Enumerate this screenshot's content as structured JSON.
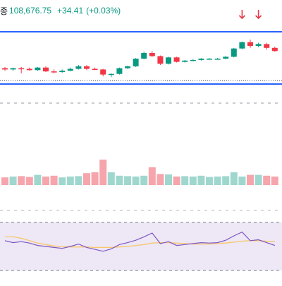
{
  "header": {
    "label": "종",
    "price": "108,676.75",
    "change": "+34.41",
    "change_pct": "(+0.03%)"
  },
  "colors": {
    "up": "#089981",
    "down": "#f23645",
    "up_volume": "#9fd7cf",
    "down_volume": "#f5a5ab",
    "channel": "#2962ff",
    "rsi_line": "#7e57c2",
    "rsi_ma": "#f7c76a",
    "rsi_band": "#ede7f6",
    "arrow": "#e53945"
  },
  "price_panel": {
    "icons": [
      "down-arrow-icon",
      "down-arrow-icon"
    ]
  },
  "chart_data": {
    "type": "candlestick",
    "price_scale": {
      "min": 0,
      "max": 100
    },
    "candles": [
      {
        "o": 26,
        "h": 28,
        "l": 22,
        "c": 24
      },
      {
        "o": 24,
        "h": 27,
        "l": 22,
        "c": 26
      },
      {
        "o": 26,
        "h": 28,
        "l": 18,
        "c": 25
      },
      {
        "o": 25,
        "h": 27,
        "l": 22,
        "c": 23
      },
      {
        "o": 23,
        "h": 28,
        "l": 22,
        "c": 27
      },
      {
        "o": 27,
        "h": 29,
        "l": 20,
        "c": 21
      },
      {
        "o": 21,
        "h": 24,
        "l": 18,
        "c": 20
      },
      {
        "o": 20,
        "h": 24,
        "l": 19,
        "c": 22
      },
      {
        "o": 22,
        "h": 27,
        "l": 21,
        "c": 25
      },
      {
        "o": 25,
        "h": 31,
        "l": 24,
        "c": 29
      },
      {
        "o": 29,
        "h": 31,
        "l": 23,
        "c": 25
      },
      {
        "o": 25,
        "h": 27,
        "l": 23,
        "c": 24
      },
      {
        "o": 24,
        "h": 25,
        "l": 13,
        "c": 16
      },
      {
        "o": 16,
        "h": 18,
        "l": 12,
        "c": 17
      },
      {
        "o": 17,
        "h": 27,
        "l": 16,
        "c": 26
      },
      {
        "o": 26,
        "h": 30,
        "l": 25,
        "c": 29
      },
      {
        "o": 29,
        "h": 42,
        "l": 28,
        "c": 41
      },
      {
        "o": 41,
        "h": 52,
        "l": 40,
        "c": 50
      },
      {
        "o": 50,
        "h": 53,
        "l": 44,
        "c": 45
      },
      {
        "o": 45,
        "h": 46,
        "l": 31,
        "c": 33
      },
      {
        "o": 33,
        "h": 44,
        "l": 32,
        "c": 43
      },
      {
        "o": 43,
        "h": 44,
        "l": 35,
        "c": 36
      },
      {
        "o": 36,
        "h": 39,
        "l": 35,
        "c": 38
      },
      {
        "o": 38,
        "h": 40,
        "l": 37,
        "c": 39
      },
      {
        "o": 39,
        "h": 42,
        "l": 38,
        "c": 41
      },
      {
        "o": 41,
        "h": 42,
        "l": 40,
        "c": 41
      },
      {
        "o": 41,
        "h": 42,
        "l": 40,
        "c": 41
      },
      {
        "o": 41,
        "h": 45,
        "l": 40,
        "c": 44
      },
      {
        "o": 44,
        "h": 58,
        "l": 43,
        "c": 57
      },
      {
        "o": 57,
        "h": 68,
        "l": 56,
        "c": 67
      },
      {
        "o": 67,
        "h": 71,
        "l": 58,
        "c": 61
      },
      {
        "o": 61,
        "h": 66,
        "l": 59,
        "c": 64
      },
      {
        "o": 64,
        "h": 66,
        "l": 55,
        "c": 58
      },
      {
        "o": 58,
        "h": 60,
        "l": 52,
        "c": 53
      }
    ],
    "volume": [
      0.18,
      0.2,
      0.21,
      0.19,
      0.24,
      0.2,
      0.22,
      0.18,
      0.2,
      0.21,
      0.28,
      0.3,
      0.6,
      0.3,
      0.22,
      0.21,
      0.2,
      0.22,
      0.42,
      0.26,
      0.25,
      0.2,
      0.21,
      0.2,
      0.22,
      0.19,
      0.2,
      0.21,
      0.3,
      0.2,
      0.24,
      0.24,
      0.22,
      0.2
    ],
    "rsi": [
      62,
      58,
      60,
      57,
      52,
      50,
      48,
      46,
      50,
      55,
      48,
      44,
      40,
      45,
      54,
      58,
      63,
      70,
      78,
      56,
      60,
      52,
      54,
      56,
      58,
      57,
      58,
      63,
      72,
      80,
      62,
      64,
      58,
      52
    ],
    "rsi_ma": [
      70,
      70,
      67,
      62,
      57,
      54,
      51,
      50,
      49,
      49,
      49,
      48,
      48,
      48,
      49,
      50,
      52,
      54,
      57,
      58,
      58,
      57,
      56,
      55,
      55,
      55,
      56,
      57,
      59,
      61,
      62,
      62,
      61,
      60
    ],
    "rsi_range": [
      0,
      100
    ]
  }
}
